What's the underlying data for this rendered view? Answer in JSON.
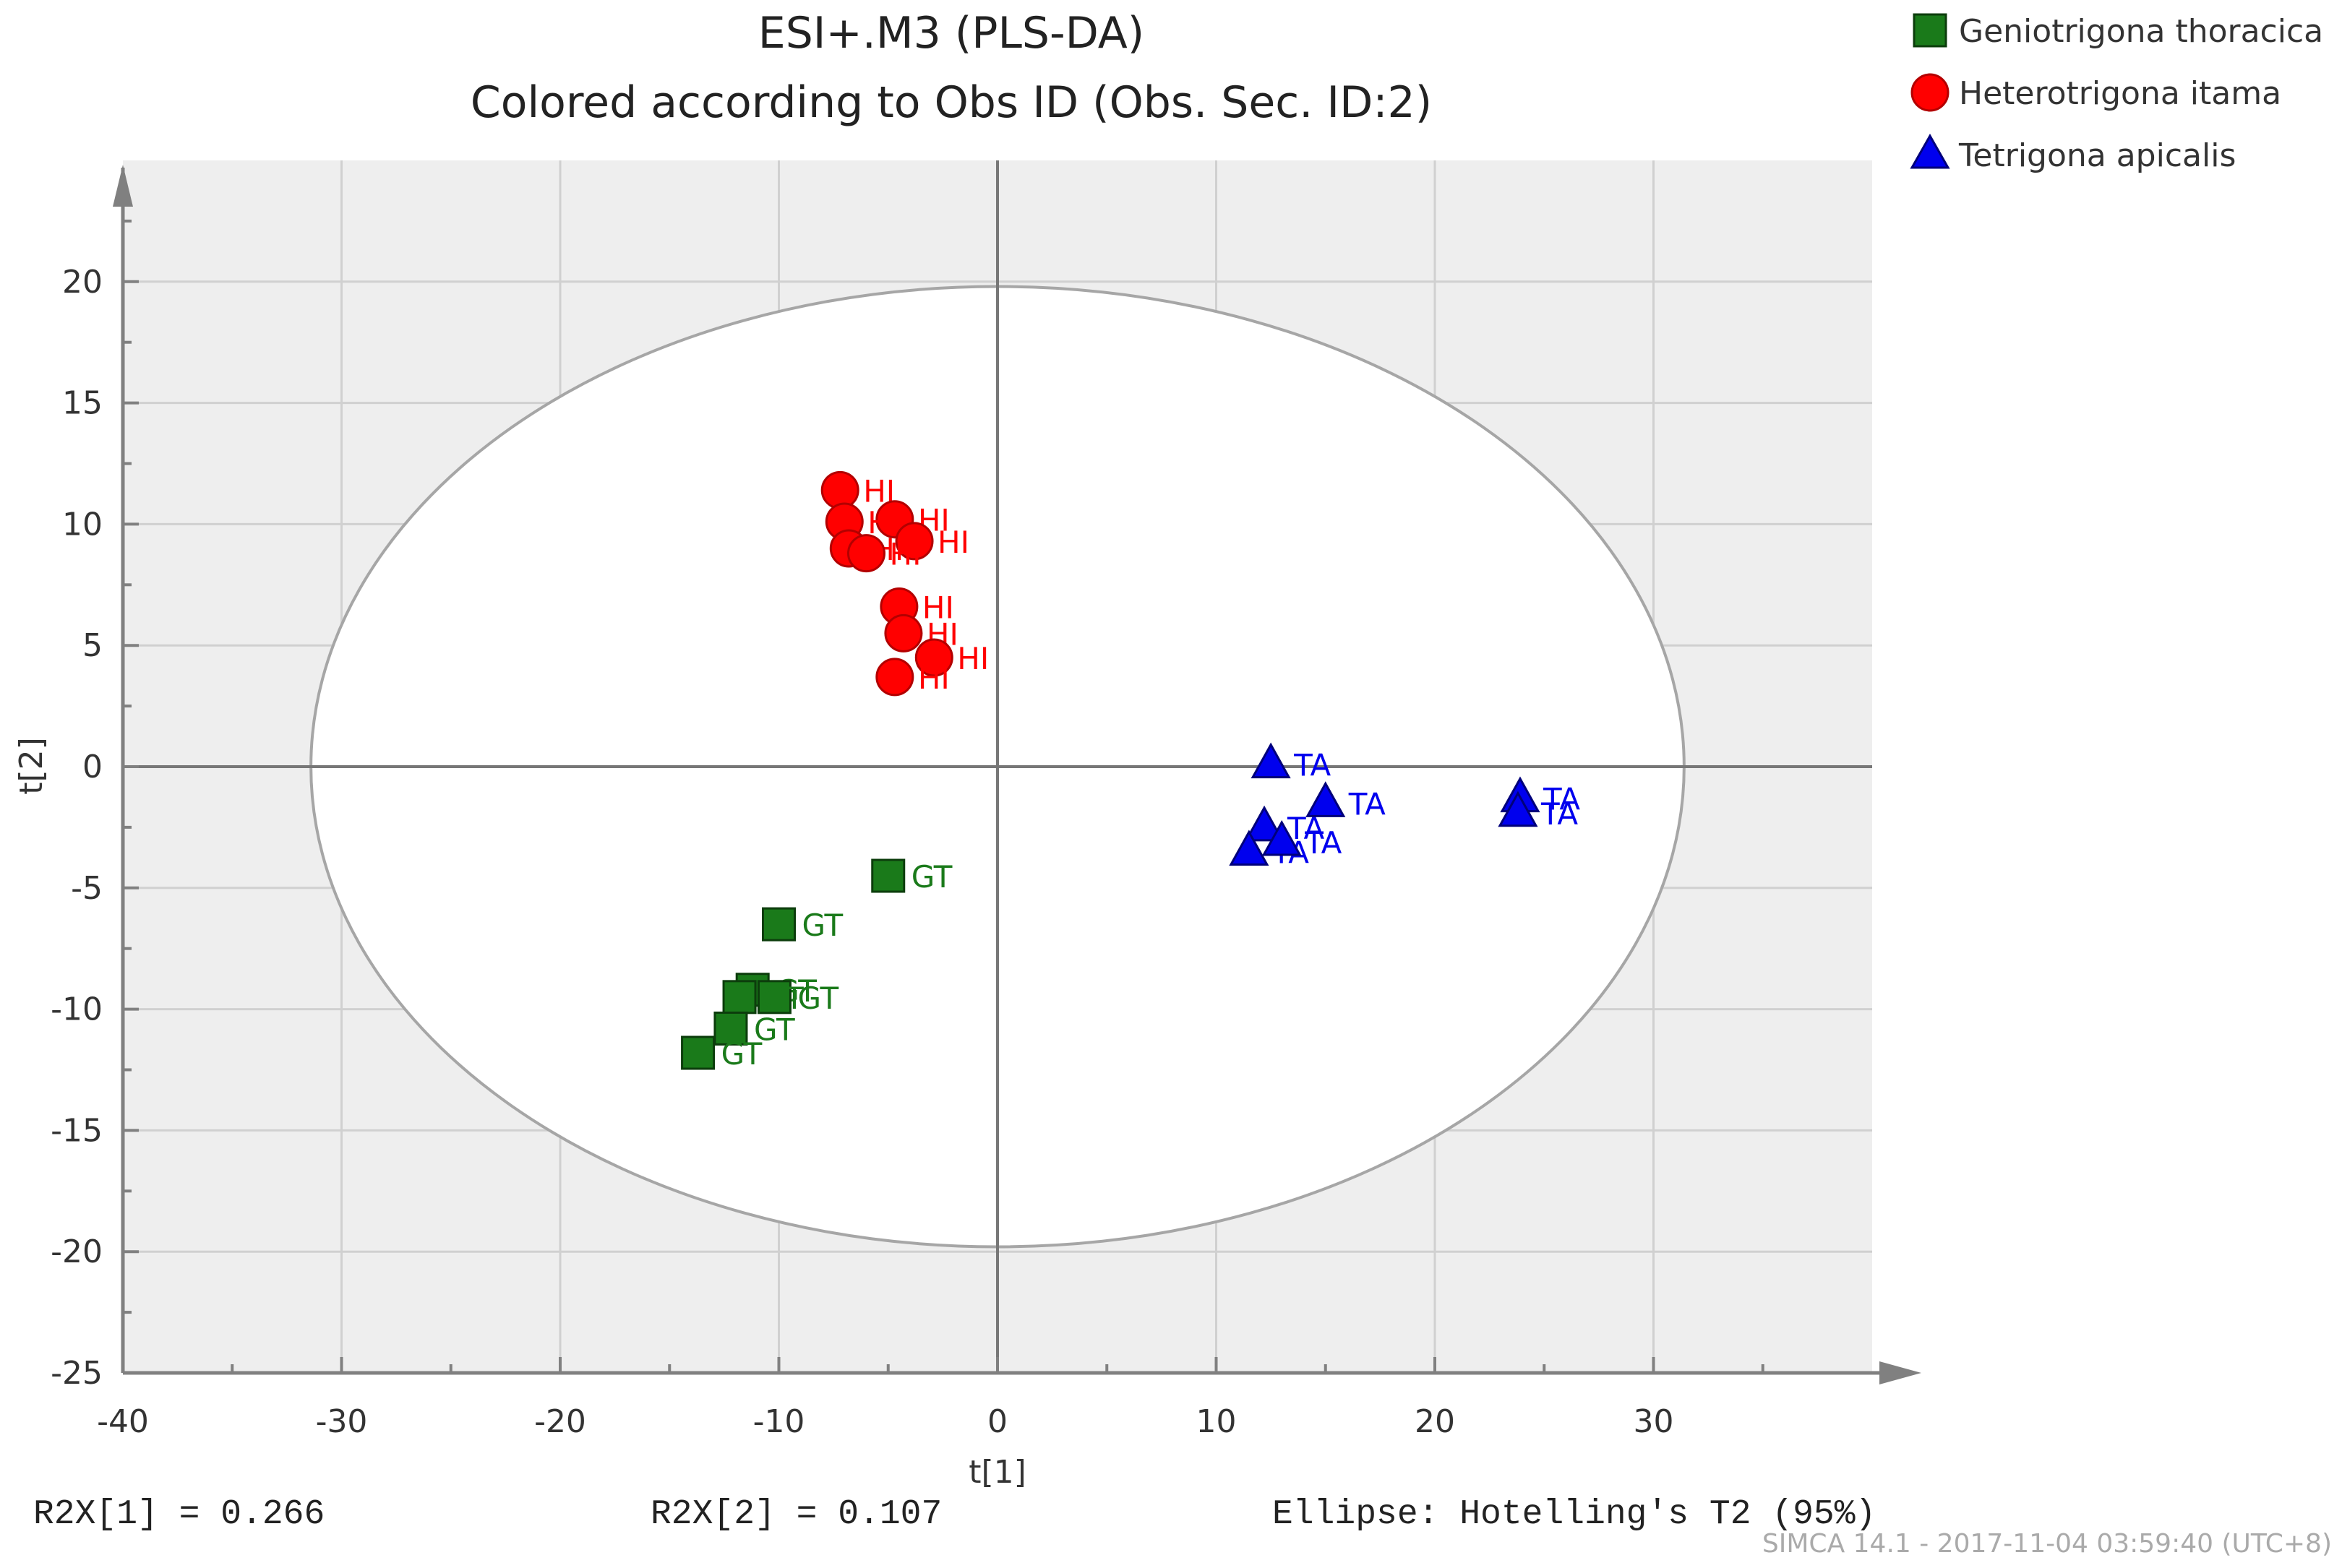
{
  "chart_data": {
    "type": "scatter",
    "title": "ESI+.M3 (PLS-DA)",
    "subtitle": "Colored according to Obs ID (Obs. Sec. ID:2)",
    "xlabel": "t[1]",
    "ylabel": "t[2]",
    "xlim": [
      -40,
      40
    ],
    "ylim": [
      -25,
      25
    ],
    "x_ticks": [
      "-40",
      "-30",
      "-20",
      "-10",
      "0",
      "10",
      "20",
      "30"
    ],
    "y_ticks": [
      "-25",
      "-20",
      "-15",
      "-10",
      "-5",
      "0",
      "5",
      "10",
      "15",
      "20"
    ],
    "grid": true,
    "legend_position": "top-right",
    "ellipse": {
      "center": [
        0,
        0
      ],
      "radius_x": 31.4,
      "radius_y": 19.8,
      "label": "Ellipse: Hotelling's T2 (95%)"
    },
    "series": [
      {
        "name": "Geniotrigona thoracica",
        "short": "GT",
        "color": "#1a7a1a",
        "marker": "square",
        "points": [
          {
            "x": -5.0,
            "y": -4.5,
            "label": "GT"
          },
          {
            "x": -10.0,
            "y": -6.5,
            "label": "GT"
          },
          {
            "x": -11.2,
            "y": -9.2,
            "label": "GT"
          },
          {
            "x": -10.2,
            "y": -9.5,
            "label": "GT"
          },
          {
            "x": -11.8,
            "y": -9.5,
            "label": "GT"
          },
          {
            "x": -12.2,
            "y": -10.8,
            "label": "GT"
          },
          {
            "x": -13.7,
            "y": -11.8,
            "label": "GT"
          }
        ]
      },
      {
        "name": "Heterotrigona itama",
        "short": "HI",
        "color": "#ff0000",
        "marker": "circle",
        "points": [
          {
            "x": -7.2,
            "y": 11.4,
            "label": "HI"
          },
          {
            "x": -4.7,
            "y": 10.2,
            "label": "HI"
          },
          {
            "x": -7.0,
            "y": 10.1,
            "label": "HI"
          },
          {
            "x": -3.8,
            "y": 9.3,
            "label": "HI"
          },
          {
            "x": -6.8,
            "y": 9.0,
            "label": "HI"
          },
          {
            "x": -6.0,
            "y": 8.8,
            "label": "HI"
          },
          {
            "x": -4.5,
            "y": 6.6,
            "label": "HI"
          },
          {
            "x": -4.3,
            "y": 5.5,
            "label": "HI"
          },
          {
            "x": -2.9,
            "y": 4.5,
            "label": "HI"
          },
          {
            "x": -4.7,
            "y": 3.7,
            "label": "HI"
          }
        ]
      },
      {
        "name": "Tetrigona apicalis",
        "short": "TA",
        "color": "#0000ee",
        "marker": "triangle",
        "points": [
          {
            "x": 12.5,
            "y": 0.1,
            "label": "TA"
          },
          {
            "x": 12.2,
            "y": -2.5,
            "label": "TA"
          },
          {
            "x": 15.0,
            "y": -1.5,
            "label": "TA"
          },
          {
            "x": 11.5,
            "y": -3.5,
            "label": "TA"
          },
          {
            "x": 13.0,
            "y": -3.1,
            "label": "TA"
          },
          {
            "x": 23.9,
            "y": -1.3,
            "label": "TA"
          },
          {
            "x": 23.8,
            "y": -1.9,
            "label": "TA"
          }
        ]
      }
    ]
  },
  "footer": {
    "r2x1": "R2X[1] = 0.266",
    "r2x2": "R2X[2] = 0.107",
    "ellipse_note": "Ellipse: Hotelling's T2 (95%)",
    "software_stamp": "SIMCA 14.1 - 2017-11-04 03:59:40 (UTC+8)"
  }
}
